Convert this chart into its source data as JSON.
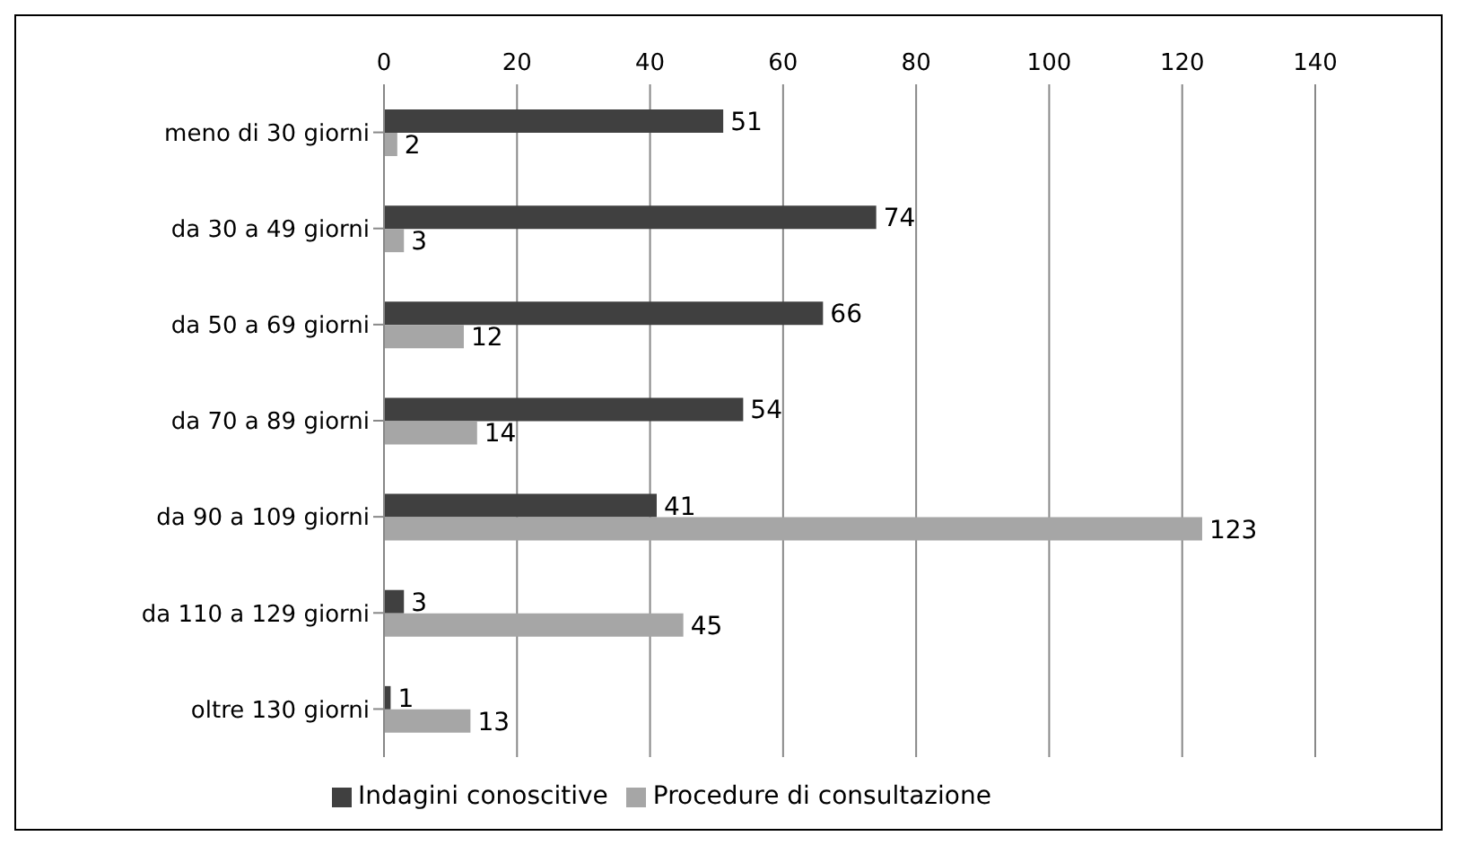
{
  "chart_data": {
    "type": "bar",
    "orientation": "horizontal",
    "categories": [
      "meno di 30 giorni",
      "da 30 a 49 giorni",
      "da 50 a 69 giorni",
      "da 70 a 89 giorni",
      "da 90 a 109 giorni",
      "da 110 a 129 giorni",
      "oltre 130 giorni"
    ],
    "series": [
      {
        "name": "Indagini conoscitive",
        "color": "#404040",
        "values": [
          51,
          74,
          66,
          54,
          41,
          3,
          1
        ]
      },
      {
        "name": "Procedure di consultazione",
        "color": "#a6a6a6",
        "values": [
          2,
          3,
          12,
          14,
          123,
          45,
          13
        ]
      }
    ],
    "xlim": [
      0,
      140
    ],
    "xticks": [
      0,
      20,
      40,
      60,
      80,
      100,
      120,
      140
    ],
    "grid": "x",
    "legend": "bottom",
    "data_labels": true
  }
}
